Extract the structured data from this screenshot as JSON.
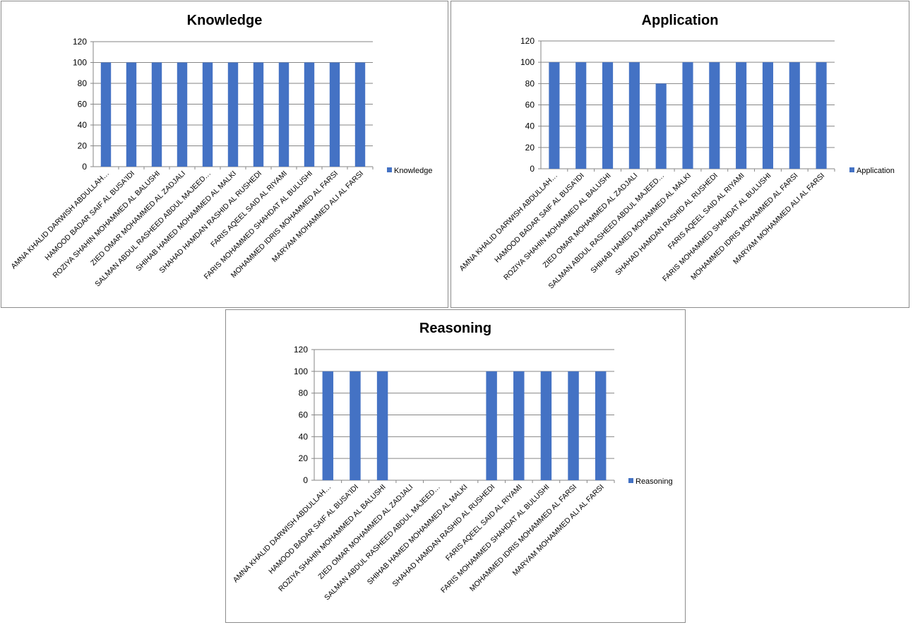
{
  "colors": {
    "bar": "#4472C4",
    "grid": "#868686",
    "axis": "#868686"
  },
  "chart_data": [
    {
      "type": "bar",
      "title": "Knowledge",
      "legend": "Knowledge",
      "legend_position": "right",
      "ylim": [
        0,
        120
      ],
      "yticks": [
        "0",
        "20",
        "40",
        "60",
        "80",
        "100",
        "120"
      ],
      "categories": [
        "AMNA KHALID DARWISH ABDULLAH…",
        "HAMOOD BADAR SAIF AL BUSA'IDI",
        "ROZIYA SHAHIN MOHAMMED AL BALUSHI",
        "ZIED OMAR MOHAMMED AL ZADJALI",
        "SALMAN ABDUL RASHEED ABDUL MAJEED…",
        "SHIHAB HAMED MOHAMMED AL MALKI",
        "SHAHAD HAMDAN RASHID AL RUSHEDI",
        "FARIS AQEEL SAID AL RIYAMI",
        "FARIS MOHAMMED SHAHDAT AL BULUSHI",
        "MOHAMMED IDRIS MOHAMMED AL FARSI",
        "MARYAM MOHAMMED ALI AL FARSI"
      ],
      "values": [
        100,
        100,
        100,
        100,
        100,
        100,
        100,
        100,
        100,
        100,
        100
      ]
    },
    {
      "type": "bar",
      "title": "Application",
      "legend": "Application",
      "legend_position": "right",
      "ylim": [
        0,
        120
      ],
      "yticks": [
        "0",
        "20",
        "40",
        "60",
        "80",
        "100",
        "120"
      ],
      "categories": [
        "AMNA KHALID DARWISH ABDULLAH…",
        "HAMOOD BADAR SAIF AL BUSA'IDI",
        "ROZIYA SHAHIN MOHAMMED AL BALUSHI",
        "ZIED OMAR MOHAMMED AL ZADJALI",
        "SALMAN ABDUL RASHEED ABDUL MAJEED…",
        "SHIHAB HAMED MOHAMMED AL MALKI",
        "SHAHAD HAMDAN RASHID AL RUSHEDI",
        "FARIS AQEEL SAID AL RIYAMI",
        "FARIS MOHAMMED SHAHDAT AL BULUSHI",
        "MOHAMMED IDRIS MOHAMMED AL FARSI",
        "MARYAM MOHAMMED ALI AL FARSI"
      ],
      "values": [
        100,
        100,
        100,
        100,
        80,
        100,
        100,
        100,
        100,
        100,
        100
      ]
    },
    {
      "type": "bar",
      "title": "Reasoning",
      "legend": "Reasoning",
      "legend_position": "right",
      "ylim": [
        0,
        120
      ],
      "yticks": [
        "0",
        "20",
        "40",
        "60",
        "80",
        "100",
        "120"
      ],
      "categories": [
        "AMNA KHALID DARWISH ABDULLAH…",
        "HAMOOD BADAR SAIF AL BUSA'IDI",
        "ROZIYA SHAHIN MOHAMMED AL BALUSHI",
        "ZIED OMAR MOHAMMED AL ZADJALI",
        "SALMAN ABDUL RASHEED ABDUL MAJEED…",
        "SHIHAB HAMED MOHAMMED AL MALKI",
        "SHAHAD HAMDAN RASHID AL RUSHEDI",
        "FARIS AQEEL SAID AL RIYAMI",
        "FARIS MOHAMMED SHAHDAT AL BULUSHI",
        "MOHAMMED IDRIS MOHAMMED AL FARSI",
        "MARYAM MOHAMMED ALI AL FARSI"
      ],
      "values": [
        100,
        100,
        100,
        0,
        0,
        0,
        100,
        100,
        100,
        100,
        100
      ]
    }
  ]
}
